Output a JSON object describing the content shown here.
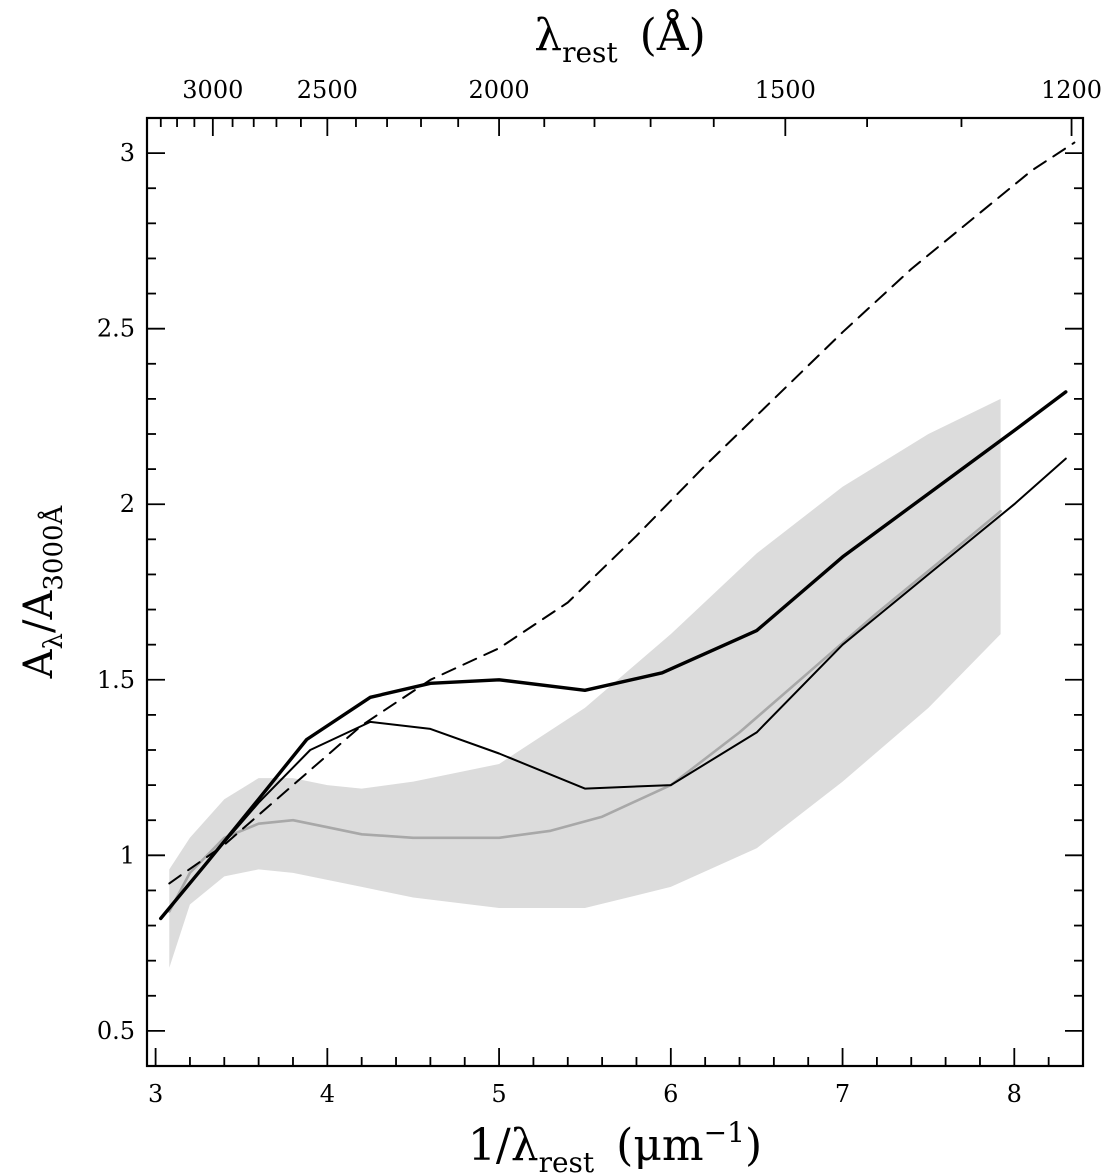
{
  "chart_data": {
    "type": "line",
    "title": "",
    "xlabel": {
      "main": "1/λ",
      "sub": "rest",
      "unit": "(μm",
      "sup": "−1",
      "close": ")"
    },
    "ylabel": {
      "main": "A",
      "sub1": "λ",
      "slash": "/A",
      "sub2": "3000Å"
    },
    "top_xlabel": {
      "main": "λ",
      "sub": "rest",
      "unit": "(Å)"
    },
    "xlim": [
      2.95,
      8.4
    ],
    "ylim": [
      0.4,
      3.1
    ],
    "x_ticks": [
      "3",
      "4",
      "5",
      "6",
      "7",
      "8"
    ],
    "y_ticks": [
      "0.5",
      "1",
      "1.5",
      "2",
      "2.5",
      "3"
    ],
    "top_ticks": [
      "3000",
      "2500",
      "2000",
      "1500",
      "1200"
    ],
    "top_tick_wavelengths_angstrom": [
      3000,
      2500,
      2000,
      1500,
      1200
    ],
    "grid": false,
    "band": {
      "x": [
        3.08,
        3.2,
        3.4,
        3.6,
        3.8,
        4.0,
        4.2,
        4.5,
        5.0,
        5.5,
        6.0,
        6.5,
        7.0,
        7.5,
        7.92
      ],
      "upper": [
        0.96,
        1.05,
        1.16,
        1.22,
        1.22,
        1.2,
        1.19,
        1.21,
        1.26,
        1.42,
        1.63,
        1.86,
        2.05,
        2.2,
        2.3
      ],
      "lower": [
        0.68,
        0.86,
        0.94,
        0.96,
        0.95,
        0.93,
        0.91,
        0.88,
        0.85,
        0.85,
        0.91,
        1.02,
        1.21,
        1.42,
        1.63
      ],
      "color": "#dcdcdc"
    },
    "series": [
      {
        "style": "gray-mean",
        "color": "#a8a8a8",
        "x": [
          3.08,
          3.2,
          3.4,
          3.6,
          3.8,
          4.0,
          4.2,
          4.5,
          5.0,
          5.3,
          5.6,
          6.0,
          6.4,
          6.8,
          7.2,
          7.6,
          7.92
        ],
        "y": [
          0.84,
          0.95,
          1.05,
          1.09,
          1.1,
          1.08,
          1.06,
          1.05,
          1.05,
          1.07,
          1.11,
          1.2,
          1.35,
          1.52,
          1.69,
          1.85,
          1.98
        ]
      },
      {
        "style": "dashed",
        "color": "#000000",
        "x": [
          3.08,
          3.4,
          3.8,
          4.2,
          4.6,
          5.0,
          5.4,
          5.8,
          6.2,
          6.6,
          7.0,
          7.4,
          7.8,
          8.1,
          8.35
        ],
        "y": [
          0.92,
          1.03,
          1.2,
          1.37,
          1.5,
          1.59,
          1.72,
          1.91,
          2.11,
          2.3,
          2.49,
          2.67,
          2.83,
          2.95,
          3.03
        ]
      },
      {
        "style": "thin-solid",
        "color": "#000000",
        "x": [
          3.05,
          3.3,
          3.6,
          3.9,
          4.25,
          4.6,
          5.0,
          5.5,
          6.0,
          6.5,
          7.0,
          7.5,
          8.0,
          8.3
        ],
        "y": [
          0.83,
          0.98,
          1.15,
          1.3,
          1.38,
          1.36,
          1.29,
          1.19,
          1.2,
          1.35,
          1.6,
          1.8,
          2.0,
          2.13
        ]
      },
      {
        "style": "thick-solid",
        "color": "#000000",
        "x": [
          3.03,
          3.3,
          3.6,
          3.88,
          4.25,
          4.6,
          5.0,
          5.5,
          5.95,
          6.5,
          7.0,
          7.5,
          8.0,
          8.3
        ],
        "y": [
          0.82,
          0.98,
          1.16,
          1.33,
          1.45,
          1.49,
          1.5,
          1.47,
          1.52,
          1.64,
          1.85,
          2.03,
          2.21,
          2.32
        ]
      }
    ]
  }
}
